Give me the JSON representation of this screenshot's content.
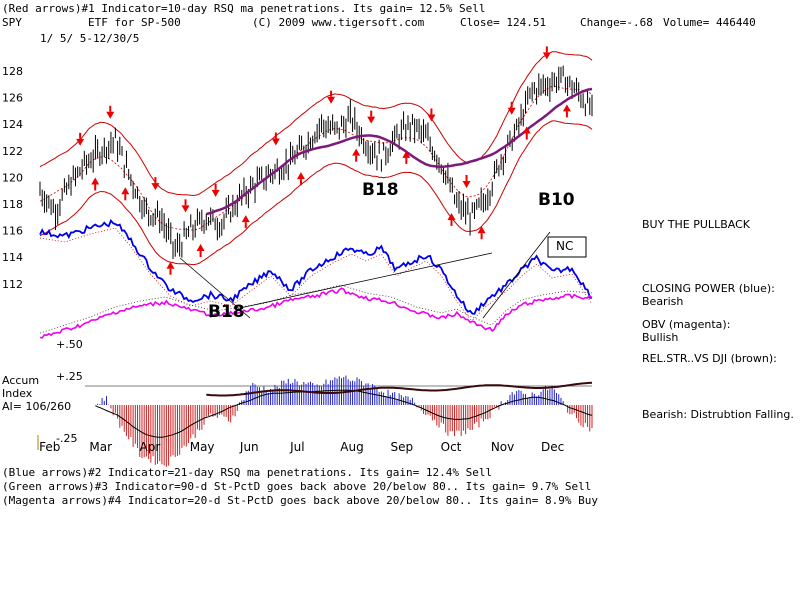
{
  "header": {
    "line1": "(Red arrows)#1 Indicator=10-day RSQ ma penetrations. Its gain= 12.5% Sell",
    "symbol": "SPY",
    "etf": "ETF for SP-500",
    "copyright": "(C) 2009 www.tigersoft.com",
    "close": "Close=  124.51",
    "change": "Change=-.68",
    "volume": "Volume= 446440",
    "dates": "1/ 5/ 5-12/30/5"
  },
  "chart_data": {
    "type": "line",
    "title": "",
    "y_ticks": [
      "128",
      "126",
      "124",
      "122",
      "120",
      "118",
      "116",
      "114",
      "112"
    ],
    "ylim": [
      110.5,
      129.5
    ],
    "x_ticks": [
      "Feb",
      "Mar",
      "Apr",
      "May",
      "Jun",
      "Jul",
      "Aug",
      "Sep",
      "Oct",
      "Nov",
      "Dec"
    ],
    "months_index": [
      1,
      2,
      3,
      4,
      5,
      6,
      7,
      8,
      9,
      10,
      11,
      12
    ],
    "price_path": [
      [
        1,
        119
      ],
      [
        1.3,
        117.5
      ],
      [
        1.6,
        119.5
      ],
      [
        1.9,
        121
      ],
      [
        2.2,
        122
      ],
      [
        2.5,
        122.8
      ],
      [
        2.8,
        120
      ],
      [
        3.1,
        117.5
      ],
      [
        3.4,
        117
      ],
      [
        3.7,
        114.5
      ],
      [
        4.0,
        116
      ],
      [
        4.3,
        117
      ],
      [
        4.6,
        116.5
      ],
      [
        5.0,
        118.5
      ],
      [
        5.3,
        119.5
      ],
      [
        5.6,
        120.3
      ],
      [
        6.0,
        121.2
      ],
      [
        6.3,
        122.5
      ],
      [
        6.6,
        124
      ],
      [
        6.9,
        123.5
      ],
      [
        7.2,
        124.5
      ],
      [
        7.5,
        122.5
      ],
      [
        7.8,
        121.5
      ],
      [
        8.1,
        123
      ],
      [
        8.4,
        124
      ],
      [
        8.7,
        123
      ],
      [
        9.0,
        121
      ],
      [
        9.3,
        118
      ],
      [
        9.6,
        117
      ],
      [
        9.9,
        118.5
      ],
      [
        10.2,
        121.5
      ],
      [
        10.5,
        123.5
      ],
      [
        10.8,
        126.5
      ],
      [
        11.1,
        127
      ],
      [
        11.4,
        127.5
      ],
      [
        11.7,
        126.5
      ],
      [
        12.0,
        125
      ]
    ],
    "annotations": [
      "B18",
      "B10",
      "B18",
      "NC",
      "+.50"
    ],
    "accum_index": {
      "label_lines": [
        "Accum",
        "Index",
        "AI= 106/260"
      ],
      "plus_label": "+.25",
      "minus_label": "-.25"
    }
  },
  "right_panel": {
    "buy": "BUY THE PULLBACK",
    "cp_title": "CLOSING POWER (blue):",
    "cp_value": "Bearish",
    "obv_title": "OBV (magenta):",
    "obv_value": "Bullish",
    "relstr": "REL.STR..VS DJI (brown):",
    "accum_note": "Bearish: Distrubtion Falling."
  },
  "footer": {
    "blue": "(Blue arrows)#2 Indicator=21-day RSQ ma penetrations. Its gain= 12.4% Sell",
    "green": "(Green arrows)#3 Indicator=90-d St-PctD goes back above 20/below 80.. Its gain= 9.7% Sell",
    "magenta": "(Magenta arrows)#4 Indicator=20-d St-PctD goes back above 20/below 80.. Its gain= 8.9% Buy"
  },
  "colors": {
    "price": "#000000",
    "bands": "#cc0000",
    "ma": "#7b1a7b",
    "closing_power": "#0000ee",
    "obv": "#ee00ee",
    "arrows": "#ee0000",
    "accum_pos": "#2222cc",
    "accum_neg": "#cc2222"
  }
}
